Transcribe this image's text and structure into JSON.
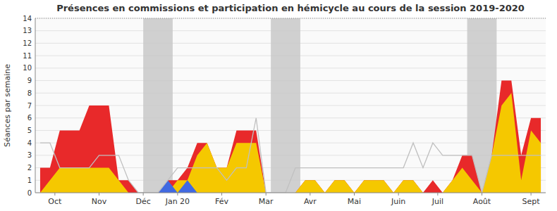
{
  "chart_data": {
    "type": "area",
    "title": "Présences en commissions et participation en hémicycle au cours de la session 2019-2020",
    "y_label": "Séances par semaine",
    "x": [
      0,
      1,
      2,
      3,
      4,
      5,
      6,
      7,
      8,
      9,
      10,
      11,
      12,
      13,
      14,
      15,
      16,
      17,
      18,
      19,
      20,
      21,
      22,
      23,
      24,
      25,
      26,
      27,
      28,
      29,
      30,
      31,
      32,
      33,
      34,
      35,
      36,
      37,
      38,
      39,
      40,
      41,
      42,
      43,
      44,
      45,
      46,
      47,
      48,
      49,
      50,
      51
    ],
    "xlim": [
      -0.5,
      51.5
    ],
    "xticks": [
      {
        "value": 1.5,
        "label": "Oct"
      },
      {
        "value": 6.0,
        "label": "Nov"
      },
      {
        "value": 10.5,
        "label": "Déc"
      },
      {
        "value": 14.0,
        "label": "Jan 20"
      },
      {
        "value": 18.5,
        "label": "Fév"
      },
      {
        "value": 23.0,
        "label": "Mar"
      },
      {
        "value": 27.5,
        "label": "Avr"
      },
      {
        "value": 32.0,
        "label": "Mai"
      },
      {
        "value": 36.5,
        "label": "Juin"
      },
      {
        "value": 40.5,
        "label": "Juil"
      },
      {
        "value": 45.0,
        "label": "Août"
      },
      {
        "value": 50.0,
        "label": "Sept"
      }
    ],
    "ylim": [
      0,
      14
    ],
    "yticks": [
      0,
      1,
      2,
      3,
      4,
      5,
      6,
      7,
      8,
      9,
      10,
      11,
      12,
      13,
      14
    ],
    "grid": true,
    "bands": {
      "color": "#c8c8c8",
      "ranges": [
        [
          10.5,
          13.5
        ],
        [
          23.5,
          26.5
        ],
        [
          43.5,
          46.5
        ]
      ]
    },
    "series": [
      {
        "type": "area",
        "color": "#e8292a",
        "values": [
          2,
          2,
          5,
          5,
          5,
          7,
          7,
          7,
          1,
          1,
          0,
          0,
          0,
          1,
          1,
          2,
          4,
          4,
          2,
          2,
          5,
          5,
          5,
          0,
          0,
          0,
          0,
          1,
          1,
          0,
          1,
          1,
          0,
          1,
          1,
          1,
          0,
          1,
          1,
          0,
          1,
          0,
          1,
          3,
          3,
          0,
          3,
          9,
          9,
          3,
          6,
          6
        ]
      },
      {
        "type": "area",
        "color": "#f5c800",
        "values": [
          0,
          1,
          2,
          2,
          2,
          2,
          2,
          2,
          1,
          0,
          0,
          0,
          0,
          0,
          1,
          1,
          3,
          4,
          2,
          2,
          4,
          4,
          4,
          0,
          0,
          0,
          0,
          1,
          1,
          0,
          1,
          1,
          0,
          1,
          1,
          1,
          0,
          1,
          1,
          0,
          0,
          0,
          1,
          2,
          1,
          0,
          3,
          7,
          8,
          1,
          5,
          4
        ]
      },
      {
        "type": "area",
        "color": "#4169e1",
        "values": [
          0,
          0,
          0,
          0,
          0,
          0,
          0,
          0,
          0,
          0,
          0,
          0,
          0,
          1,
          0,
          1,
          0,
          0,
          0,
          0,
          0,
          0,
          0,
          0,
          0,
          0,
          0,
          0,
          0,
          0,
          0,
          0,
          0,
          0,
          0,
          0,
          0,
          0,
          0,
          0,
          0,
          0,
          0,
          0,
          0,
          0,
          0,
          0,
          0,
          0,
          0,
          0
        ]
      },
      {
        "type": "line",
        "color": "#c0c0c0",
        "values": [
          4,
          4,
          2,
          2,
          2,
          2,
          3,
          3,
          3,
          1,
          0,
          0,
          0,
          1,
          2,
          2,
          2,
          2,
          2,
          1,
          2,
          2,
          6,
          0,
          0,
          0,
          2,
          2,
          2,
          2,
          2,
          2,
          2,
          2,
          2,
          2,
          2,
          2,
          4,
          2,
          4,
          3,
          3,
          3,
          3,
          0,
          3,
          3,
          3,
          3,
          3,
          3
        ]
      }
    ]
  }
}
